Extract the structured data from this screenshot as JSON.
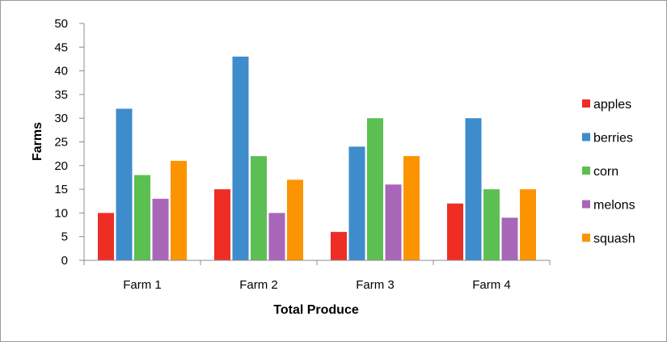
{
  "chart_data": {
    "type": "bar",
    "title": "",
    "xlabel": "Total Produce",
    "ylabel": "Farms",
    "categories": [
      "Farm 1",
      "Farm 2",
      "Farm 3",
      "Farm 4"
    ],
    "ylim": [
      0,
      50
    ],
    "yticks": [
      0,
      5,
      10,
      15,
      20,
      25,
      30,
      35,
      40,
      45,
      50
    ],
    "grid": false,
    "legend_position": "right",
    "series": [
      {
        "name": "apples",
        "color": "#ee2e24",
        "values": [
          10,
          15,
          6,
          12
        ]
      },
      {
        "name": "berries",
        "color": "#3e8ccb",
        "values": [
          32,
          43,
          24,
          30
        ]
      },
      {
        "name": "corn",
        "color": "#5cbf52",
        "values": [
          18,
          22,
          30,
          15
        ]
      },
      {
        "name": "melons",
        "color": "#a866b8",
        "values": [
          13,
          10,
          16,
          9
        ]
      },
      {
        "name": "squash",
        "color": "#fb9400",
        "values": [
          21,
          17,
          22,
          15
        ]
      }
    ]
  }
}
